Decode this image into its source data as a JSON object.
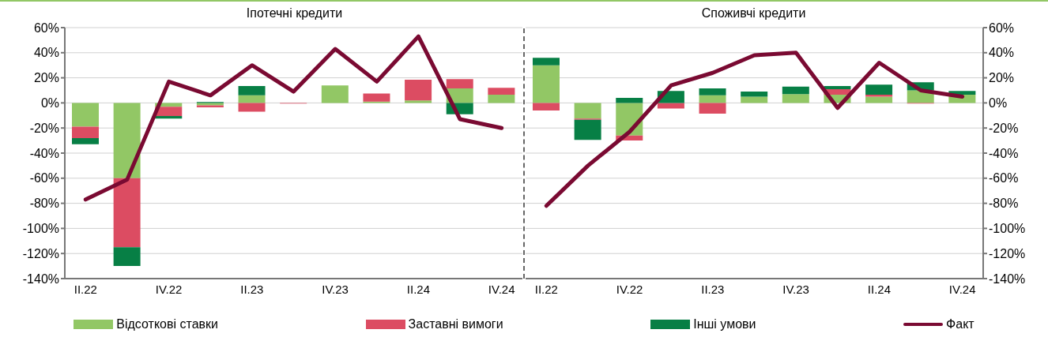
{
  "chart_data": [
    {
      "type": "bar",
      "stacked": true,
      "title": "Іпотечні кредити",
      "categories": [
        "II.22",
        null,
        "IV.22",
        null,
        "II.23",
        null,
        "IV.23",
        null,
        "II.24",
        null,
        "IV.24"
      ],
      "series": [
        {
          "name": "Відсоткові ставки",
          "color": "#92c765",
          "values": [
            -19,
            -60,
            -3,
            -2,
            6,
            null,
            14,
            1,
            2,
            11.5,
            6.5
          ]
        },
        {
          "name": "Заставні вимоги",
          "color": "#dc4c62",
          "values": [
            -9,
            -55,
            -7.5,
            -1.5,
            -7,
            -0.5,
            null,
            6.5,
            16.5,
            7.5,
            5.5
          ]
        },
        {
          "name": "Інші умови",
          "color": "#077f45",
          "values": [
            -5,
            -15,
            -2,
            0.7,
            7.5,
            null,
            null,
            null,
            null,
            -9,
            null
          ]
        },
        {
          "type": "line",
          "name": "Факт",
          "color": "#7a0a32",
          "values": [
            -77,
            -61,
            17,
            6,
            30,
            9,
            43,
            17,
            53,
            -13,
            -20
          ]
        }
      ],
      "ylim": [
        -140,
        60
      ],
      "yticks": [
        {
          "value": -140,
          "label": "-140%"
        },
        {
          "value": -120,
          "label": "-120%"
        },
        {
          "value": -100,
          "label": "-100%"
        },
        {
          "value": -80,
          "label": "-80%"
        },
        {
          "value": -60,
          "label": "-60%"
        },
        {
          "value": -40,
          "label": "-40%"
        },
        {
          "value": -20,
          "label": "-20%"
        },
        {
          "value": 0,
          "label": "0%"
        },
        {
          "value": 20,
          "label": "20%"
        },
        {
          "value": 40,
          "label": "40%"
        },
        {
          "value": 60,
          "label": "60%"
        }
      ],
      "grid": "y",
      "legend": "bottom",
      "marker": "none",
      "line_style": "solid"
    },
    {
      "type": "bar",
      "stacked": true,
      "title": "Споживчі кредити",
      "categories": [
        "II.22",
        null,
        "IV.22",
        null,
        "II.23",
        null,
        "IV.23",
        null,
        "II.24",
        null,
        "IV.24"
      ],
      "series": [
        {
          "color": "#92c765",
          "values": [
            30,
            -12.5,
            -26,
            null,
            6,
            5,
            7,
            6.5,
            5,
            10,
            6.5
          ]
        },
        {
          "color": "#dc4c62",
          "values": [
            -6,
            -1,
            -4,
            -4.5,
            -8.5,
            null,
            null,
            4.5,
            1.5,
            -0.5,
            null
          ]
        },
        {
          "color": "#077f45",
          "values": [
            6,
            -16,
            4,
            9.5,
            5.5,
            4,
            6,
            2.5,
            8,
            6.5,
            3
          ]
        },
        {
          "type": "line",
          "color": "#7a0a32",
          "values": [
            -82,
            -50,
            -23,
            14,
            24,
            38,
            40,
            -4,
            32,
            10,
            5
          ]
        }
      ],
      "ylim": [
        -140,
        60
      ],
      "yticks": [
        {
          "value": -140,
          "label": "-140%"
        },
        {
          "value": -120,
          "label": "-120%"
        },
        {
          "value": -100,
          "label": "-100%"
        },
        {
          "value": -80,
          "label": "-80%"
        },
        {
          "value": -60,
          "label": "-60%"
        },
        {
          "value": -40,
          "label": "-40%"
        },
        {
          "value": -20,
          "label": "-20%"
        },
        {
          "value": 0,
          "label": "0%"
        },
        {
          "value": 20,
          "label": "20%"
        },
        {
          "value": 40,
          "label": "40%"
        },
        {
          "value": 60,
          "label": "60%"
        }
      ],
      "grid": "y",
      "marker": "none",
      "line_style": "solid"
    }
  ]
}
